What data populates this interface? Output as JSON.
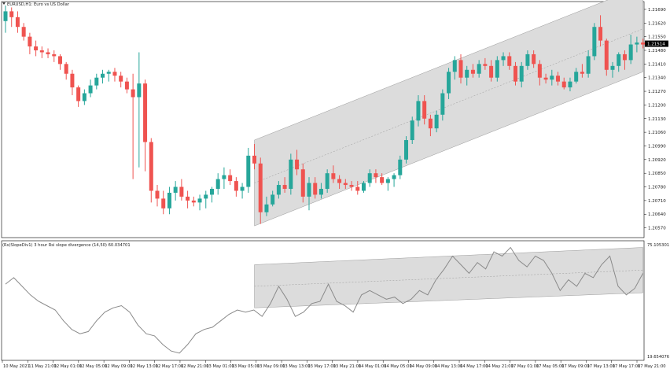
{
  "colors": {
    "bull": "#26a69a",
    "bear": "#ef5350",
    "channel_fill": "#dcdcdc",
    "channel_line": "#9a9a9a",
    "grid": "#000000",
    "rsi_line": "#8a8a8a",
    "price_tag_bg": "#000000",
    "price_tag_text": "#ffffff"
  },
  "main": {
    "label": "EURUSD,H1:  Euro vs US Dollar",
    "symbol_icon": "triangle-down-icon"
  },
  "indicator": {
    "label": "(Rs)SlopeDiv1) 3 hour Rsi slope divergence (14,50) 60.034701",
    "axis_top": "75.105301",
    "axis_bottom": "19.654076"
  },
  "chart_data": [
    {
      "type": "candlestick",
      "title": "EURUSD,H1:  Euro vs US Dollar",
      "y_ticks": [
        "1.21690",
        "1.21620",
        "1.21550",
        "1.21480",
        "1.21410",
        "1.21340",
        "1.21270",
        "1.21200",
        "1.21130",
        "1.21060",
        "1.20990",
        "1.20920",
        "1.20850",
        "1.20780",
        "1.20710",
        "1.20640",
        "1.20570"
      ],
      "y_tick_values": [
        1.2169,
        1.2162,
        1.2155,
        1.2148,
        1.2141,
        1.2134,
        1.2127,
        1.212,
        1.2113,
        1.2106,
        1.2099,
        1.2092,
        1.2085,
        1.2078,
        1.2071,
        1.2064,
        1.2057
      ],
      "ylim": [
        1.2052,
        1.2173
      ],
      "current_price": "1.21514",
      "current_price_value": 1.21514,
      "x_ticks": [
        "10 May 2021",
        "11 May 21:00",
        "12 May 01:00",
        "12 May 05:00",
        "12 May 09:00",
        "12 May 13:00",
        "12 May 17:00",
        "12 May 21:00",
        "13 May 01:00",
        "13 May 05:00",
        "13 May 09:00",
        "13 May 13:00",
        "13 May 17:00",
        "13 May 21:00",
        "14 May 01:00",
        "14 May 05:00",
        "14 May 09:00",
        "14 May 13:00",
        "14 May 17:00",
        "14 May 21:00",
        "17 May 01:00",
        "17 May 05:00",
        "17 May 09:00",
        "17 May 13:00",
        "17 May 17:00",
        "17 May 21:00"
      ],
      "ohlc": [
        [
          1.2163,
          1.2171,
          1.2157,
          1.2168
        ],
        [
          1.2168,
          1.217,
          1.216,
          1.2165
        ],
        [
          1.2165,
          1.2168,
          1.2157,
          1.216
        ],
        [
          1.216,
          1.2162,
          1.2153,
          1.2155
        ],
        [
          1.2155,
          1.2157,
          1.2146,
          1.215
        ],
        [
          1.215,
          1.2153,
          1.2145,
          1.2148
        ],
        [
          1.2148,
          1.215,
          1.2144,
          1.2147
        ],
        [
          1.2147,
          1.2149,
          1.2144,
          1.2146
        ],
        [
          1.2146,
          1.2148,
          1.2142,
          1.2145
        ],
        [
          1.2145,
          1.2146,
          1.2138,
          1.2141
        ],
        [
          1.2141,
          1.2142,
          1.2133,
          1.2136
        ],
        [
          1.2136,
          1.2138,
          1.2125,
          1.2129
        ],
        [
          1.2129,
          1.213,
          1.2119,
          1.2122
        ],
        [
          1.2122,
          1.2128,
          1.212,
          1.2126
        ],
        [
          1.2126,
          1.2133,
          1.2124,
          1.213
        ],
        [
          1.213,
          1.2136,
          1.2128,
          1.2134
        ],
        [
          1.2134,
          1.2138,
          1.2131,
          1.2136
        ],
        [
          1.2136,
          1.2138,
          1.2132,
          1.2137
        ],
        [
          1.2137,
          1.2139,
          1.2132,
          1.2135
        ],
        [
          1.2135,
          1.2137,
          1.2129,
          1.2132
        ],
        [
          1.2132,
          1.2134,
          1.2126,
          1.2128
        ],
        [
          1.2128,
          1.2136,
          1.2082,
          1.2124
        ],
        [
          1.2124,
          1.2147,
          1.2088,
          1.2131
        ],
        [
          1.2131,
          1.2133,
          1.2086,
          1.2101
        ],
        [
          1.2101,
          1.2103,
          1.207,
          1.2076
        ],
        [
          1.2076,
          1.2079,
          1.2068,
          1.2072
        ],
        [
          1.2072,
          1.2076,
          1.2064,
          1.2067
        ],
        [
          1.2067,
          1.2078,
          1.2064,
          1.2075
        ],
        [
          1.2075,
          1.2081,
          1.2071,
          1.2078
        ],
        [
          1.2078,
          1.2082,
          1.2071,
          1.2073
        ],
        [
          1.2073,
          1.2076,
          1.2067,
          1.2071
        ],
        [
          1.2071,
          1.2073,
          1.2068,
          1.207
        ],
        [
          1.207,
          1.2074,
          1.2066,
          1.2072
        ],
        [
          1.2072,
          1.2076,
          1.2067,
          1.2074
        ],
        [
          1.2074,
          1.2078,
          1.207,
          1.2077
        ],
        [
          1.2077,
          1.2085,
          1.2074,
          1.2082
        ],
        [
          1.2082,
          1.2088,
          1.2077,
          1.2084
        ],
        [
          1.2084,
          1.2087,
          1.2079,
          1.2081
        ],
        [
          1.2081,
          1.2083,
          1.2073,
          1.2076
        ],
        [
          1.2076,
          1.208,
          1.2072,
          1.2078
        ],
        [
          1.2078,
          1.2098,
          1.2075,
          1.2094
        ],
        [
          1.2094,
          1.21,
          1.2087,
          1.209
        ],
        [
          1.209,
          1.2093,
          1.2059,
          1.2065
        ],
        [
          1.2065,
          1.2073,
          1.2063,
          1.2069
        ],
        [
          1.2069,
          1.2076,
          1.2068,
          1.2074
        ],
        [
          1.2074,
          1.2081,
          1.2072,
          1.2079
        ],
        [
          1.2079,
          1.2083,
          1.2075,
          1.2077
        ],
        [
          1.2077,
          1.2095,
          1.2074,
          1.2092
        ],
        [
          1.2092,
          1.2097,
          1.2084,
          1.2087
        ],
        [
          1.2087,
          1.209,
          1.207,
          1.2073
        ],
        [
          1.2073,
          1.2083,
          1.2066,
          1.208
        ],
        [
          1.208,
          1.2083,
          1.2072,
          1.2074
        ],
        [
          1.2074,
          1.208,
          1.2072,
          1.2077
        ],
        [
          1.2077,
          1.2087,
          1.2075,
          1.2085
        ],
        [
          1.2085,
          1.2089,
          1.208,
          1.2082
        ],
        [
          1.2082,
          1.2084,
          1.2077,
          1.208
        ],
        [
          1.208,
          1.2082,
          1.2077,
          1.2079
        ],
        [
          1.2079,
          1.2081,
          1.2076,
          1.2078
        ],
        [
          1.2078,
          1.2081,
          1.2074,
          1.2076
        ],
        [
          1.2076,
          1.2081,
          1.2075,
          1.208
        ],
        [
          1.208,
          1.2087,
          1.2078,
          1.2085
        ],
        [
          1.2085,
          1.2087,
          1.208,
          1.2083
        ],
        [
          1.2083,
          1.2085,
          1.2079,
          1.208
        ],
        [
          1.208,
          1.2083,
          1.2076,
          1.2082
        ],
        [
          1.2082,
          1.2085,
          1.2078,
          1.2084
        ],
        [
          1.2084,
          1.2094,
          1.2082,
          1.2092
        ],
        [
          1.2092,
          1.2104,
          1.209,
          1.2102
        ],
        [
          1.2102,
          1.2114,
          1.21,
          1.2112
        ],
        [
          1.2112,
          1.2125,
          1.2109,
          1.2122
        ],
        [
          1.2122,
          1.2125,
          1.211,
          1.2113
        ],
        [
          1.2113,
          1.2115,
          1.2104,
          1.2108
        ],
        [
          1.2108,
          1.2117,
          1.2106,
          1.2115
        ],
        [
          1.2115,
          1.2128,
          1.2112,
          1.2126
        ],
        [
          1.2126,
          1.2139,
          1.2123,
          1.2137
        ],
        [
          1.2137,
          1.2145,
          1.2133,
          1.2143
        ],
        [
          1.2143,
          1.2146,
          1.2131,
          1.2134
        ],
        [
          1.2134,
          1.214,
          1.213,
          1.2138
        ],
        [
          1.2138,
          1.2141,
          1.2134,
          1.2136
        ],
        [
          1.2136,
          1.2143,
          1.2134,
          1.2141
        ],
        [
          1.2141,
          1.2144,
          1.2138,
          1.214
        ],
        [
          1.214,
          1.2143,
          1.2132,
          1.2134
        ],
        [
          1.2134,
          1.2145,
          1.2132,
          1.2143
        ],
        [
          1.2143,
          1.2147,
          1.214,
          1.2145
        ],
        [
          1.2145,
          1.2147,
          1.2138,
          1.214
        ],
        [
          1.214,
          1.2142,
          1.213,
          1.2132
        ],
        [
          1.2132,
          1.2142,
          1.2129,
          1.214
        ],
        [
          1.214,
          1.2148,
          1.2138,
          1.2146
        ],
        [
          1.2146,
          1.2148,
          1.2139,
          1.2141
        ],
        [
          1.2141,
          1.2143,
          1.213,
          1.2134
        ],
        [
          1.2134,
          1.2136,
          1.2131,
          1.2133
        ],
        [
          1.2133,
          1.2138,
          1.213,
          1.2135
        ],
        [
          1.2135,
          1.2137,
          1.213,
          1.2132
        ],
        [
          1.2132,
          1.2134,
          1.2128,
          1.2129
        ],
        [
          1.2129,
          1.2134,
          1.2127,
          1.2132
        ],
        [
          1.2132,
          1.2139,
          1.2131,
          1.2137
        ],
        [
          1.2137,
          1.2141,
          1.2134,
          1.2136
        ],
        [
          1.2136,
          1.2148,
          1.2134,
          1.2145
        ],
        [
          1.2145,
          1.2162,
          1.2143,
          1.216
        ],
        [
          1.216,
          1.2166,
          1.215,
          1.2153
        ],
        [
          1.2153,
          1.2154,
          1.2135,
          1.2138
        ],
        [
          1.2138,
          1.2142,
          1.2134,
          1.214
        ],
        [
          1.214,
          1.2147,
          1.2137,
          1.2146
        ],
        [
          1.2146,
          1.2148,
          1.2138,
          1.2143
        ],
        [
          1.2143,
          1.2156,
          1.2141,
          1.2151
        ],
        [
          1.2151,
          1.2155,
          1.2147,
          1.2152
        ],
        [
          1.2152,
          1.2154,
          1.2149,
          1.2151
        ]
      ],
      "channel": {
        "start_index": 41,
        "end_index": 105,
        "lower": [
          1.2058,
          1.2137
        ],
        "upper": [
          1.2102,
          1.2181
        ]
      }
    },
    {
      "type": "line",
      "title": "(Rs)SlopeDiv1) 3 hour Rsi slope divergence (14,50) 60.034701",
      "ylim": [
        19.654076,
        75.105301
      ],
      "y_ticks": [
        "75.105301",
        "19.654076"
      ],
      "x_step": 2,
      "values": [
        55,
        58,
        54,
        50,
        47,
        45,
        43,
        38,
        34,
        32,
        33,
        38,
        42,
        44,
        45,
        42,
        36,
        32,
        31,
        27,
        24,
        23,
        27,
        32,
        34,
        35,
        38,
        41,
        43,
        42,
        43,
        40,
        46,
        54,
        48,
        40,
        42,
        46,
        47,
        55,
        47,
        45,
        42,
        50,
        52,
        50,
        48,
        49,
        46,
        48,
        52,
        50,
        57,
        62,
        68,
        64,
        60,
        65,
        62,
        70,
        68,
        72,
        66,
        63,
        68,
        66,
        60,
        52,
        57,
        54,
        60,
        58,
        64,
        68,
        54,
        50,
        53,
        60
      ],
      "channel": {
        "start_index": 41,
        "end_index": 105,
        "lower": [
          44,
          51
        ],
        "upper": [
          64,
          72
        ]
      }
    }
  ]
}
